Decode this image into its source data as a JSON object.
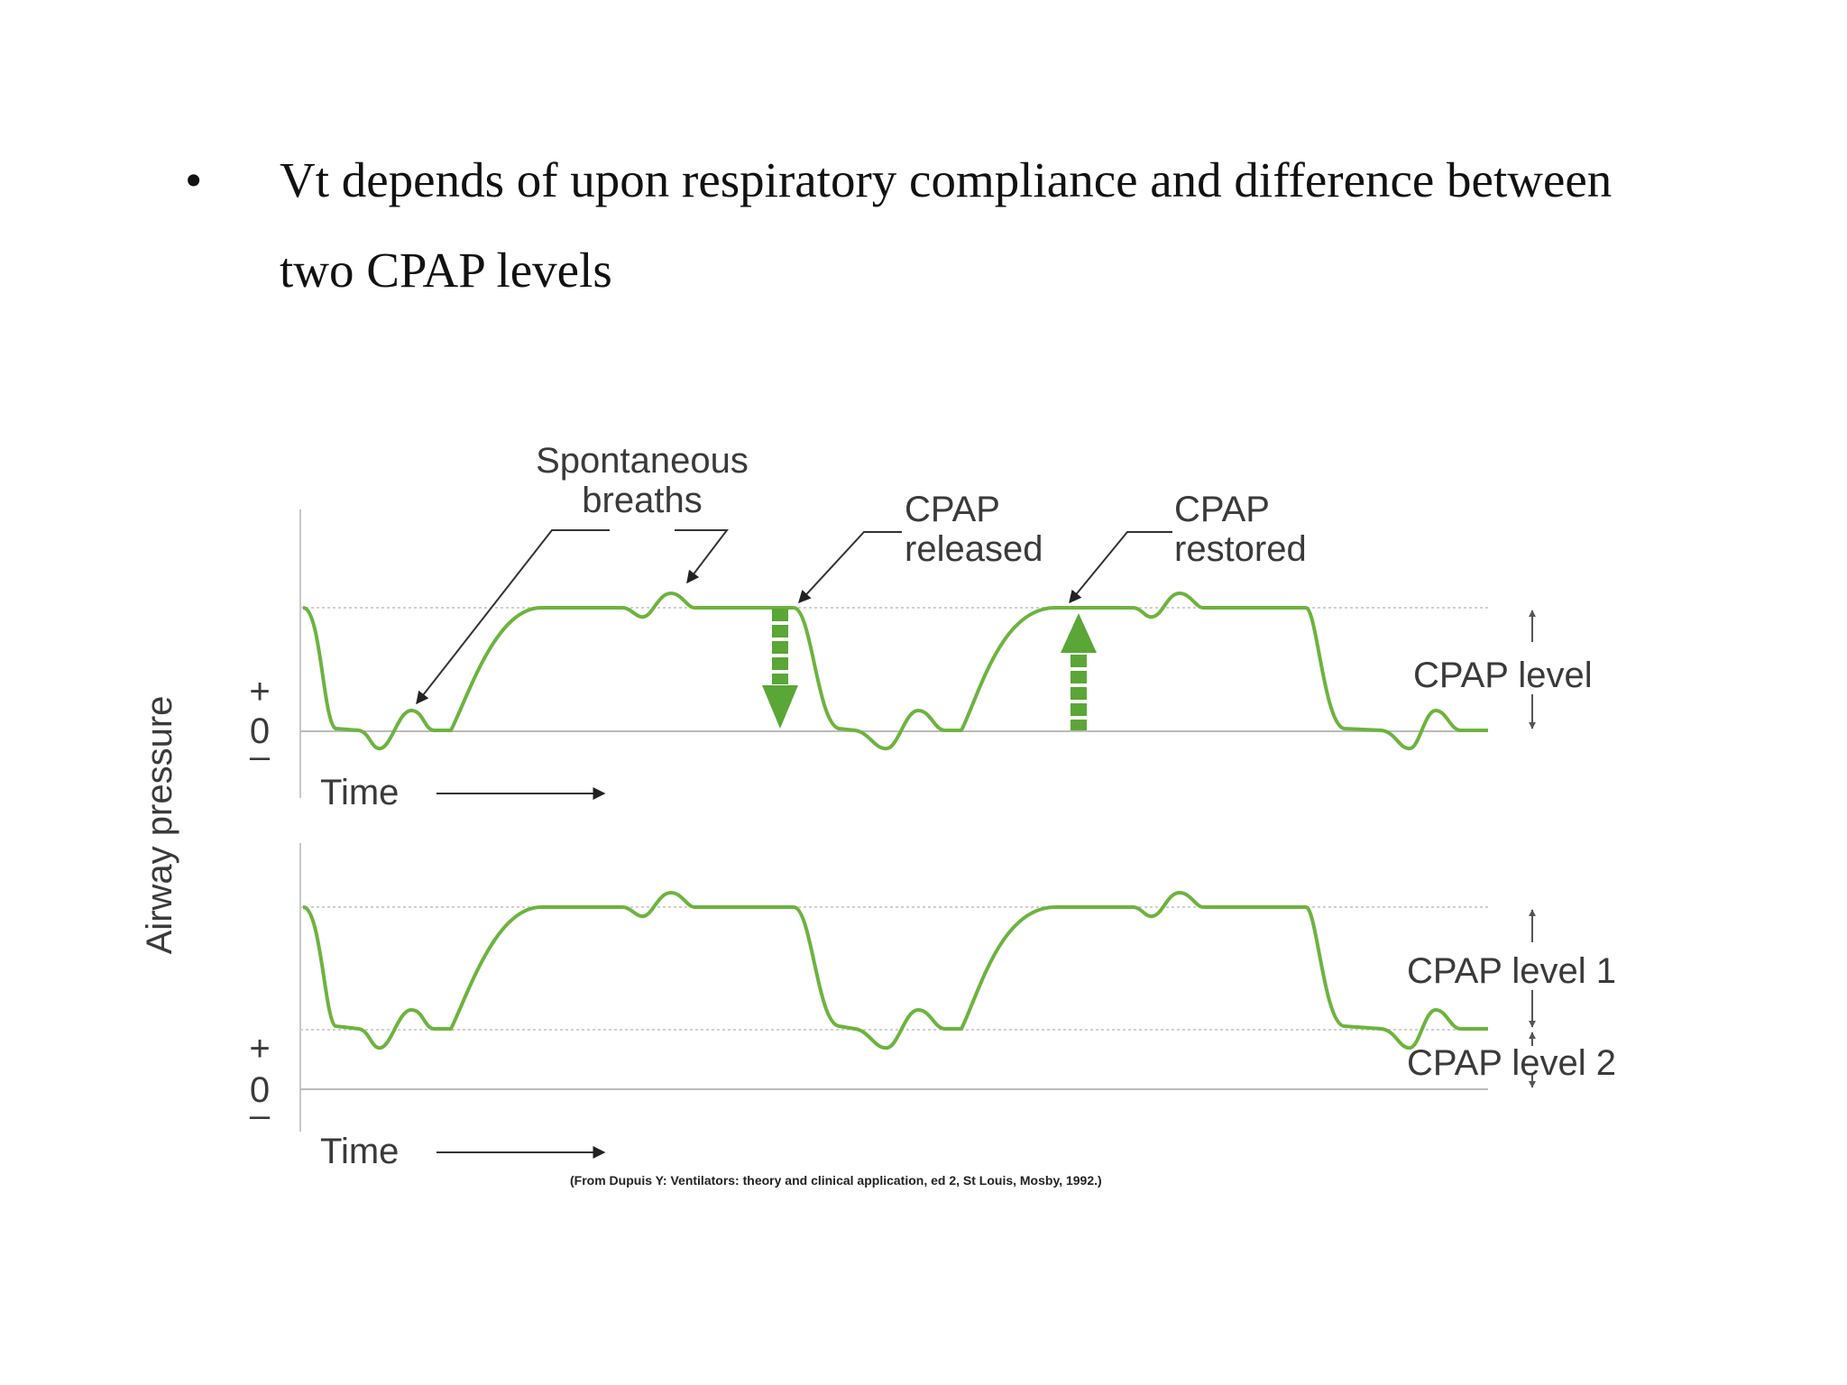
{
  "slide": {
    "bullet_symbol": "•",
    "bullet_line1": "Vt depends of upon respiratory compliance and difference between",
    "bullet_line2": "two CPAP levels"
  },
  "diagram": {
    "y_axis_label": "Airway pressure",
    "annotations": {
      "spontaneous_line1": "Spontaneous",
      "spontaneous_line2": "breaths",
      "released_line1": "CPAP",
      "released_line2": "released",
      "restored_line1": "CPAP",
      "restored_line2": "restored"
    },
    "top_panel": {
      "plus": "+",
      "zero": "0",
      "minus": "–",
      "time_label": "Time",
      "level_label": "CPAP level"
    },
    "bottom_panel": {
      "plus": "+",
      "zero": "0",
      "minus": "–",
      "time_label": "Time",
      "level1_label": "CPAP level 1",
      "level2_label": "CPAP level 2"
    },
    "citation": "(From Dupuis Y: Ventilators: theory and clinical application, ed 2, St Louis, Mosby, 1992.)",
    "colors": {
      "waveform": "#6db33f",
      "arrow_fill": "#5aa637",
      "axis": "#bbbbbb",
      "text": "#3a3a3a"
    }
  }
}
